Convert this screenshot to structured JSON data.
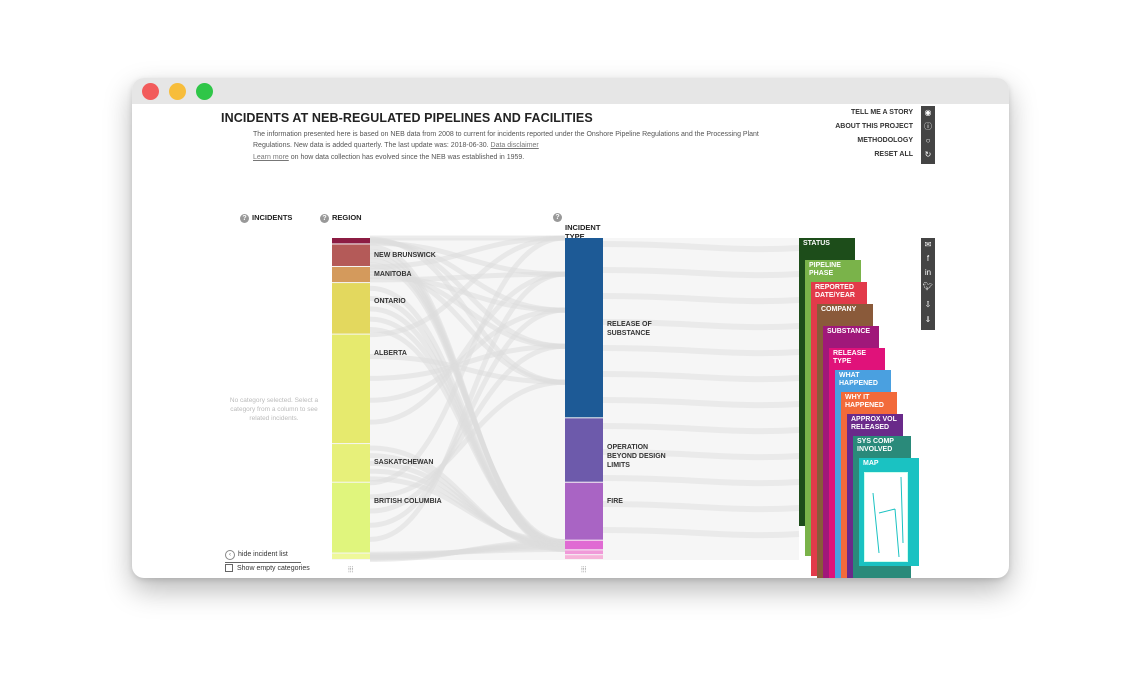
{
  "header": {
    "title": "INCIDENTS AT NEB-REGULATED PIPELINES AND FACILITIES",
    "intro": "The information presented here is based on NEB data from 2008 to current for incidents reported under the Onshore Pipeline Regulations and the Processing Plant Regulations. New data is added quarterly. The last update was: 2018-06-30.",
    "disclaimer_link": "Data disclaimer",
    "learn_more_link": "Learn more",
    "learn_more_text": "on how data collection has evolved since the NEB was established in 1959."
  },
  "menu": {
    "items": [
      "TELL ME A STORY",
      "ABOUT THIS PROJECT",
      "METHODOLOGY",
      "RESET ALL"
    ],
    "icons": [
      "eye-icon",
      "info-icon",
      "circle-icon",
      "reset-icon"
    ]
  },
  "columns": {
    "incidents": "INCIDENTS",
    "region": "REGION",
    "incident_type": "INCIDENT\nTYPE",
    "help_icon": "?"
  },
  "sidebar": {
    "empty_message": "No category selected. Select a category from a column to see related incidents.",
    "hide_list": "hide incident list",
    "show_empty": "Show empty categories"
  },
  "region_column": {
    "segments": [
      {
        "label": "",
        "share": 0.02,
        "color": "#8c1c43"
      },
      {
        "label": "NEW BRUNSWICK",
        "share": 0.07,
        "color": "#b45a58"
      },
      {
        "label": "MANITOBA",
        "share": 0.05,
        "color": "#d49a5c"
      },
      {
        "label": "ONTARIO",
        "share": 0.16,
        "color": "#e3d85e"
      },
      {
        "label": "ALBERTA",
        "share": 0.34,
        "color": "#e6ea6e"
      },
      {
        "label": "SASKATCHEWAN",
        "share": 0.12,
        "color": "#e7f07a"
      },
      {
        "label": "BRITISH COLUMBIA",
        "share": 0.22,
        "color": "#e0f57d"
      },
      {
        "label": "",
        "share": 0.02,
        "color": "#eef89a"
      }
    ]
  },
  "type_column": {
    "segments": [
      {
        "label": "RELEASE OF SUBSTANCE",
        "share": 0.56,
        "color": "#1d5a96"
      },
      {
        "label": "OPERATION BEYOND DESIGN LIMITS",
        "share": 0.2,
        "color": "#6d5aab"
      },
      {
        "label": "FIRE",
        "share": 0.18,
        "color": "#a964c4"
      },
      {
        "label": "",
        "share": 0.03,
        "color": "#e06bd3"
      },
      {
        "label": "",
        "share": 0.015,
        "color": "#f09ad9"
      },
      {
        "label": "",
        "share": 0.015,
        "color": "#f6b3d9"
      }
    ]
  },
  "cards": [
    {
      "label": "STATUS",
      "color": "#1d4d1a"
    },
    {
      "label": "PIPELINE PHASE",
      "color": "#7ab34a"
    },
    {
      "label": "REPORTED DATE/YEAR",
      "color": "#e23a4a"
    },
    {
      "label": "COMPANY",
      "color": "#8a5a3a"
    },
    {
      "label": "SUBSTANCE",
      "color": "#a0187a"
    },
    {
      "label": "RELEASE TYPE",
      "color": "#e0127a"
    },
    {
      "label": "WHAT HAPPENED",
      "color": "#4aa0e0"
    },
    {
      "label": "WHY IT HAPPENED",
      "color": "#f26a3a"
    },
    {
      "label": "APPROX VOL RELEASED",
      "color": "#6a2a8a"
    },
    {
      "label": "SYS COMP INVOLVED",
      "color": "#2a8a7a"
    },
    {
      "label": "MAP",
      "color": "#1ac2c2"
    }
  ],
  "share": {
    "icons": [
      "email-icon",
      "facebook-icon",
      "linkedin-icon",
      "twitter-icon",
      "image-download-icon",
      "data-download-icon"
    ]
  }
}
